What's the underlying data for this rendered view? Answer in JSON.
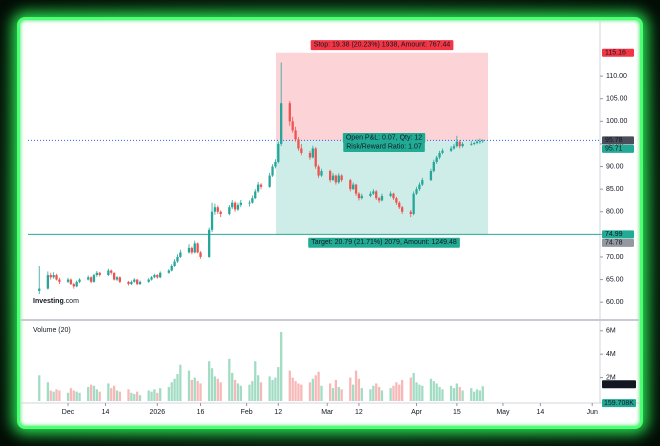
{
  "chart_data": {
    "type": "candlestick",
    "x": [
      -10,
      -7,
      -6,
      -5,
      -4,
      -3,
      0,
      1,
      2,
      3,
      4,
      7,
      8,
      9,
      10,
      11,
      14,
      15,
      16,
      17,
      18,
      21,
      22,
      23,
      24,
      25,
      28,
      29,
      30,
      31,
      32,
      35,
      36,
      37,
      38,
      39,
      42,
      43,
      44,
      45,
      46,
      49,
      50,
      51,
      52,
      53,
      56,
      57,
      58,
      59,
      60,
      63,
      64,
      65,
      66,
      67,
      70,
      71,
      72,
      73,
      74,
      77,
      78,
      79,
      80,
      81,
      84,
      85,
      86,
      87,
      88,
      91,
      92,
      93,
      94,
      95,
      98,
      99,
      100,
      101,
      102,
      105,
      106,
      107,
      108,
      109,
      112,
      113,
      114,
      115,
      116,
      119,
      120,
      121,
      122,
      123,
      126,
      127,
      128,
      129,
      130,
      133,
      134,
      135,
      136,
      137,
      140,
      141,
      142,
      143,
      144
    ],
    "open": [
      62.5,
      63,
      66,
      65.5,
      66,
      65,
      64.5,
      65,
      64,
      63.5,
      64.5,
      65,
      65.5,
      64.5,
      66,
      66.5,
      66,
      67,
      66.5,
      65,
      65.5,
      64.5,
      64,
      64.5,
      65,
      64,
      64.5,
      65,
      65.5,
      66,
      65.5,
      66.5,
      67,
      68,
      69,
      70,
      71,
      72,
      71,
      73,
      71,
      70,
      76,
      80,
      81,
      80,
      79.5,
      81,
      82,
      80.5,
      81.5,
      82,
      82,
      83,
      84.5,
      86,
      85.5,
      88,
      90,
      91,
      95,
      104,
      100,
      98,
      96,
      94,
      93,
      92,
      94,
      90,
      88,
      89,
      87,
      88,
      86.5,
      88,
      87,
      85,
      86,
      84,
      83,
      83.5,
      84,
      84.5,
      83,
      82.5,
      83.5,
      84,
      83,
      82,
      81,
      80,
      79.5,
      84,
      85,
      86,
      87,
      89,
      91,
      92,
      93,
      93.5,
      94,
      94.5,
      95.5,
      94.5,
      95,
      95,
      95.2,
      95.5,
      95.6
    ],
    "high": [
      68,
      66.8,
      66.5,
      66.6,
      66.3,
      65.4,
      65.4,
      65.2,
      64.3,
      64.8,
      65.3,
      65.9,
      65.7,
      66.3,
      66.9,
      66.7,
      67.4,
      67.2,
      66.6,
      65.8,
      65.7,
      64.7,
      64.8,
      65.3,
      65.1,
      64.8,
      65.3,
      65.8,
      66.3,
      66.2,
      66.8,
      67.3,
      68.4,
      69.5,
      70.6,
      71.6,
      72.8,
      72.3,
      73.6,
      73.2,
      71.3,
      76.5,
      82,
      81.8,
      81.4,
      80.3,
      81.5,
      82.6,
      82.3,
      82,
      82.6,
      82.5,
      83.6,
      85,
      86.6,
      86.3,
      88.6,
      90.5,
      91.6,
      95.5,
      113,
      104.5,
      101,
      98.8,
      96.5,
      95,
      93.5,
      94.6,
      94.3,
      90.4,
      89.5,
      89.3,
      88.6,
      88.2,
      88.5,
      88.3,
      87.3,
      86.5,
      86.2,
      84.3,
      84,
      84.5,
      85,
      84.8,
      83.3,
      84,
      84.5,
      84.2,
      83.3,
      82.3,
      81.3,
      80.4,
      84.5,
      85.5,
      86.5,
      87.5,
      89.5,
      91.5,
      92.4,
      93.5,
      94,
      94.5,
      95,
      96.8,
      95.8,
      95.4,
      95.6,
      95.5,
      96,
      96.2,
      96
    ],
    "low": [
      61.8,
      62.8,
      65,
      65.2,
      64.8,
      64,
      64.2,
      63.8,
      63,
      63.3,
      64.2,
      64.8,
      64.2,
      64.3,
      65.6,
      65.7,
      65.8,
      66.1,
      64.8,
      64.7,
      64.2,
      63.7,
      63.8,
      64.3,
      63.8,
      63.8,
      64.3,
      64.8,
      65.3,
      65.2,
      65.3,
      66.3,
      66.8,
      67.8,
      68.7,
      69.8,
      70.8,
      70.6,
      70.8,
      70.8,
      69.6,
      69.8,
      75.5,
      79.3,
      79.5,
      78.8,
      79.2,
      80.6,
      80,
      80.2,
      81,
      81.2,
      81.8,
      82.8,
      84.2,
      85,
      85.3,
      87.7,
      89.6,
      90.7,
      94.5,
      99,
      97.5,
      95.5,
      93.5,
      92.5,
      91.5,
      91.8,
      89.5,
      87.5,
      87.7,
      86.5,
      86.8,
      86,
      86.2,
      86.6,
      84.5,
      84.8,
      83.5,
      82.5,
      82.7,
      83.2,
      83.7,
      82.6,
      82,
      82.3,
      83.2,
      82.6,
      81.5,
      80.6,
      79.5,
      78.8,
      79.2,
      83.7,
      84.6,
      85.7,
      86.8,
      88.7,
      90.6,
      91.6,
      92.7,
      93.2,
      93.7,
      94.2,
      94,
      94.2,
      94.6,
      94.7,
      94.9,
      95,
      95.2
    ],
    "close": [
      63,
      66,
      65.5,
      66,
      65,
      64.5,
      65,
      64,
      63.5,
      64.5,
      65,
      65.5,
      64.5,
      66,
      66.5,
      66,
      67,
      66.5,
      65,
      65.5,
      64.5,
      64,
      64.5,
      65,
      64,
      64.5,
      65,
      65.5,
      66,
      65.5,
      66.5,
      67,
      68,
      69,
      70,
      71,
      72,
      71,
      73,
      71,
      70,
      76,
      80,
      81,
      80,
      79.5,
      81,
      82,
      80.5,
      81.5,
      82,
      82,
      83,
      84.5,
      86,
      85.5,
      88,
      90,
      91,
      95,
      104,
      100,
      98,
      96,
      94,
      93,
      92,
      94,
      90,
      88,
      89,
      87,
      88,
      86.5,
      88,
      87,
      85,
      86,
      84,
      83,
      83.5,
      84,
      84.5,
      83,
      82.5,
      83.5,
      84,
      83,
      82,
      81,
      80,
      79.5,
      84,
      85,
      86,
      87,
      89,
      91,
      92,
      93,
      93.5,
      94,
      94.5,
      95.5,
      94.5,
      95,
      95,
      95.2,
      95.5,
      95.6,
      95.78
    ],
    "up_color": "#26a69a",
    "down_color": "#ef5350",
    "xlim": [
      -13.9,
      184.7
    ],
    "xticks": [
      {
        "value": 0,
        "label": "Dec"
      },
      {
        "value": 13,
        "label": "14"
      },
      {
        "value": 31,
        "label": "2026"
      },
      {
        "value": 46,
        "label": "16"
      },
      {
        "value": 62,
        "label": "Feb"
      },
      {
        "value": 73,
        "label": "12"
      },
      {
        "value": 90,
        "label": "Mar"
      },
      {
        "value": 101,
        "label": "12"
      },
      {
        "value": 121,
        "label": "Apr"
      },
      {
        "value": 135,
        "label": "15"
      },
      {
        "value": 151,
        "label": "May"
      },
      {
        "value": 164,
        "label": "14"
      },
      {
        "value": 182,
        "label": "Jun"
      }
    ],
    "ylim": [
      56.5,
      121.3
    ],
    "yticks": [
      {
        "value": 60,
        "label": "60.00"
      },
      {
        "value": 65,
        "label": "65.00"
      },
      {
        "value": 70,
        "label": "70.00"
      },
      {
        "value": 75,
        "label": "75.00"
      },
      {
        "value": 80,
        "label": "80.00"
      },
      {
        "value": 85,
        "label": "85.00"
      },
      {
        "value": 90,
        "label": "90.00"
      },
      {
        "value": 95,
        "label": "95.00"
      },
      {
        "value": 100,
        "label": "100.00"
      },
      {
        "value": 105,
        "label": "105.00"
      },
      {
        "value": 110,
        "label": "110.00"
      }
    ],
    "price_labels": [
      {
        "value": 115.16,
        "color": "#f23645"
      },
      {
        "value": 95.78,
        "color": "#4a4e5a"
      },
      {
        "value": 95.71,
        "color": "#22ab94"
      },
      {
        "value": 74.99,
        "color": "#22ab94"
      },
      {
        "value": 74.78,
        "color": "#9598a1"
      }
    ],
    "position": {
      "stop_label": "Stop: 19.38 (20.23%) 1938, Amount: 767.44",
      "pnl_label": "Open P&L: 0.07, Qty: 12",
      "rr_label": "Risk/Reward Ratio: 1.07",
      "target_label": "Target: 20.79 (21.71%) 2079, Amount: 1249.48"
    },
    "watermark": {
      "name": "Investing",
      "suffix": ".com"
    },
    "volume": {
      "title": "Volume (20)",
      "values": [
        2.2,
        1.6,
        0.9,
        0.8,
        1.0,
        0.9,
        0.7,
        1.1,
        0.9,
        0.8,
        0.7,
        1.2,
        1.4,
        1.3,
        1.0,
        0.8,
        1.5,
        1.1,
        1.3,
        0.9,
        0.8,
        1.0,
        0.7,
        0.6,
        0.8,
        0.5,
        0.9,
        0.8,
        1.0,
        0.7,
        1.1,
        1.2,
        1.6,
        1.9,
        2.3,
        3.1,
        2.6,
        1.8,
        2.0,
        1.7,
        1.5,
        3.4,
        2.8,
        2.1,
        1.9,
        1.6,
        3.6,
        2.4,
        1.8,
        1.5,
        1.3,
        1.4,
        1.7,
        3.4,
        2.2,
        1.6,
        2.1,
        1.8,
        2.0,
        2.9,
        5.9,
        2.6,
        2.0,
        1.7,
        1.5,
        1.4,
        1.6,
        1.9,
        2.2,
        2.5,
        1.3,
        1.5,
        1.1,
        1.8,
        1.2,
        1.0,
        2.0,
        1.4,
        2.6,
        1.9,
        1.1,
        1.0,
        1.3,
        1.5,
        1.2,
        0.9,
        1.1,
        1.3,
        1.6,
        1.4,
        1.8,
        2.0,
        2.4,
        1.6,
        1.4,
        1.3,
        1.9,
        1.7,
        1.5,
        1.2,
        1.0,
        1.3,
        1.1,
        1.5,
        1.2,
        0.9,
        1.1,
        0.8,
        1.0,
        0.9,
        1.264
      ],
      "up_color": "#a3dcc4",
      "down_color": "#f7b9b7",
      "ylim": [
        0,
        6.75
      ],
      "yticks": [
        {
          "value": 2,
          "label": "2M"
        },
        {
          "value": 4,
          "label": "4M"
        },
        {
          "value": 6,
          "label": "6M"
        }
      ],
      "current_labels": [
        {
          "value": 1.264,
          "label": "1.264M",
          "color": "#131722"
        },
        {
          "value": 0.159708,
          "label": "159.708K",
          "color": "#22ab94"
        }
      ]
    }
  }
}
